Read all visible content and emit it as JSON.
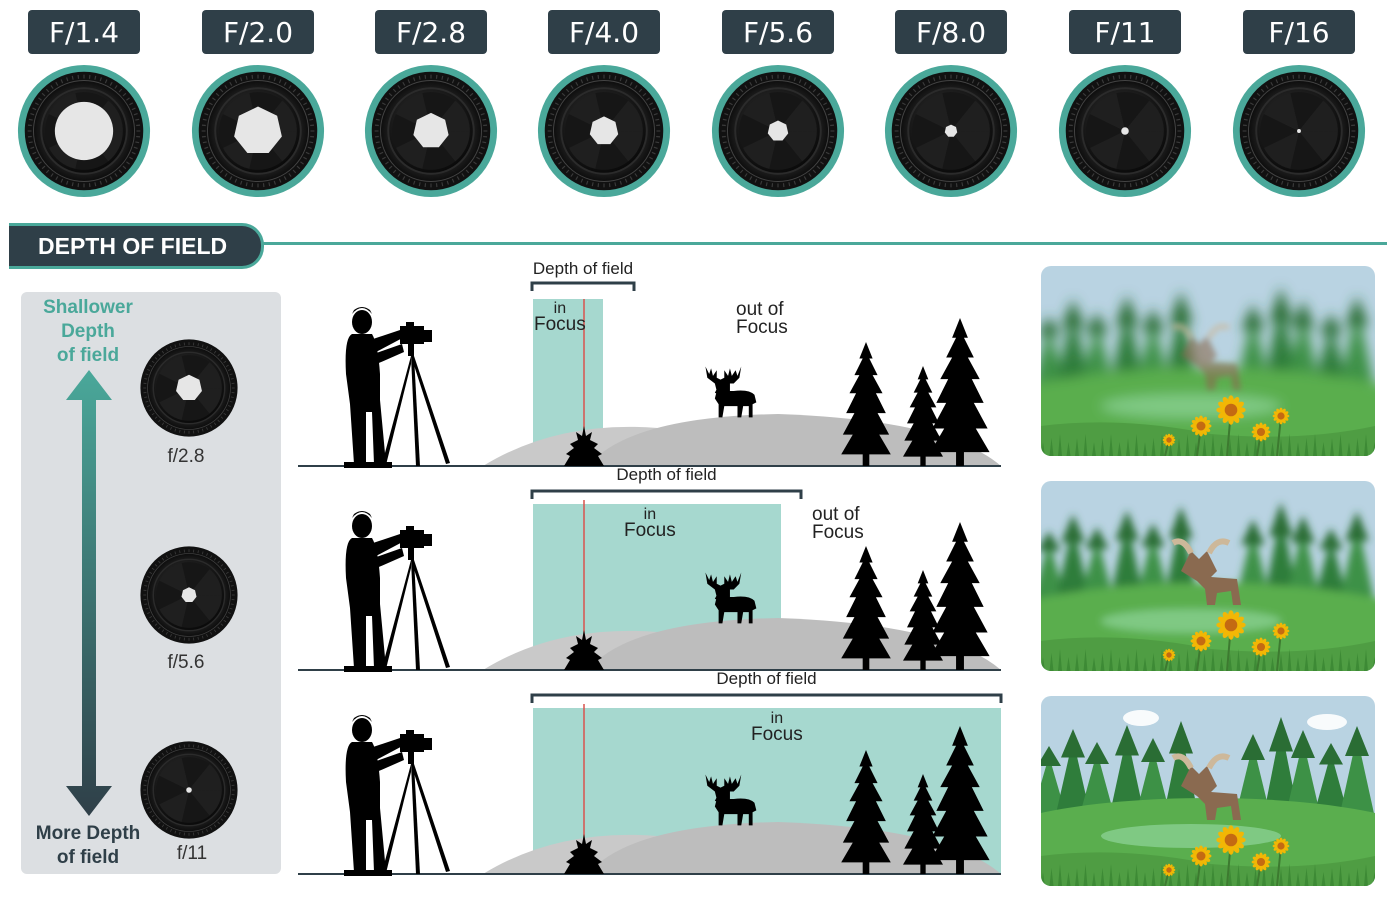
{
  "apertures": [
    {
      "label": "F/1.4",
      "opening": 1.0
    },
    {
      "label": "F/2.0",
      "opening": 0.84
    },
    {
      "label": "F/2.8",
      "opening": 0.62
    },
    {
      "label": "F/4.0",
      "opening": 0.5
    },
    {
      "label": "F/5.6",
      "opening": 0.36
    },
    {
      "label": "F/8.0",
      "opening": 0.22
    },
    {
      "label": "F/11",
      "opening": 0.13
    },
    {
      "label": "F/16",
      "opening": 0.06
    }
  ],
  "section_title": "DEPTH OF FIELD",
  "scale": {
    "top_label_line1": "Shallower",
    "top_label_line2": "Depth",
    "top_label_line3": "of field",
    "bottom_label_line1": "More Depth",
    "bottom_label_line2": "of field",
    "lenses": [
      {
        "fnumber": "f/2.8",
        "opening": 0.62
      },
      {
        "fnumber": "f/5.6",
        "opening": 0.36
      },
      {
        "fnumber": "f/11",
        "opening": 0.13
      }
    ]
  },
  "scenes": [
    {
      "dof_label": "Depth of field",
      "in_line1": "in",
      "in_line2": "Focus",
      "out_line1": "out of",
      "out_line2": "Focus",
      "focus_extent": 0.15
    },
    {
      "dof_label": "Depth of field",
      "in_line1": "in",
      "in_line2": "Focus",
      "out_line1": "out of",
      "out_line2": "Focus",
      "focus_extent": 0.53
    },
    {
      "dof_label": "Depth of field",
      "in_line1": "in",
      "in_line2": "Focus",
      "focus_extent": 1.0
    }
  ],
  "photos": [
    {
      "blur_level": "heavy"
    },
    {
      "blur_level": "medium"
    },
    {
      "blur_level": "none"
    }
  ],
  "colors": {
    "dark": "#2f3f48",
    "teal": "#4aa89a",
    "focus_zone": "#a6d8cf",
    "focal_line": "#d9534f",
    "hill": "#bdbdbd",
    "panel": "#dcdfe2"
  }
}
